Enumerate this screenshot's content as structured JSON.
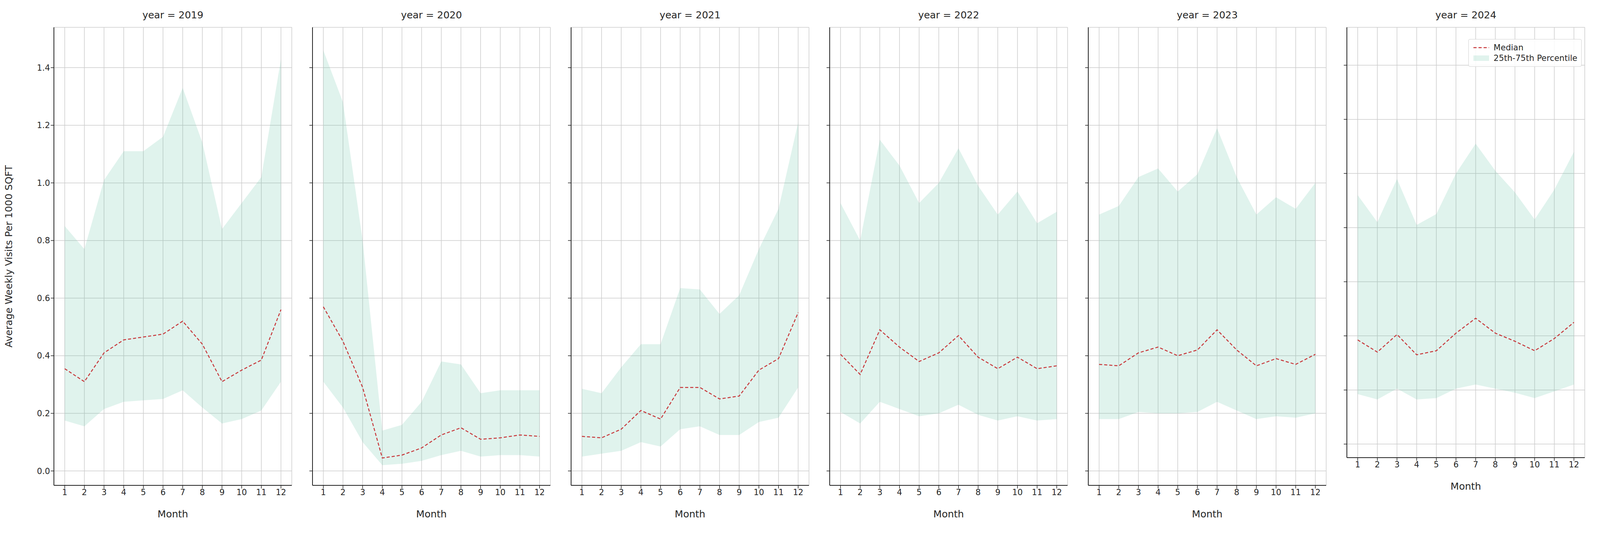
{
  "chart_data": [
    {
      "type": "line",
      "title": "year = 2019",
      "x_label": "Month",
      "y_label": "Average Weekly Visits Per 1000 SQFT",
      "x": [
        1,
        2,
        3,
        4,
        5,
        6,
        7,
        8,
        9,
        10,
        11,
        12
      ],
      "xlim": [
        0.45,
        12.55
      ],
      "xticks": [
        1,
        2,
        3,
        4,
        5,
        6,
        7,
        8,
        9,
        10,
        11,
        12
      ],
      "ylim": [
        -0.05,
        1.54
      ],
      "yticks": [
        {
          "value": 0,
          "label": "0.0"
        },
        0.2,
        0.4,
        0.6,
        0.8,
        {
          "value": 1,
          "label": "1.0"
        },
        1.2,
        1.4
      ],
      "grid": true,
      "series": [
        {
          "name": "Median",
          "type": "line",
          "line_style": "dashed",
          "color": "#c8383b",
          "values": [
            0.355,
            0.31,
            0.41,
            0.455,
            0.465,
            0.475,
            0.52,
            0.44,
            0.31,
            0.35,
            0.385,
            0.56
          ]
        },
        {
          "name": "25th-75th Percentile",
          "type": "area",
          "color": "#66c2a5",
          "values": [
            [
              0.175,
              0.85
            ],
            [
              0.155,
              0.77
            ],
            [
              0.215,
              1.01
            ],
            [
              0.24,
              1.11
            ],
            [
              0.245,
              1.11
            ],
            [
              0.25,
              1.16
            ],
            [
              0.28,
              1.33
            ],
            [
              0.22,
              1.14
            ],
            [
              0.165,
              0.84
            ],
            [
              0.18,
              0.93
            ],
            [
              0.21,
              1.02
            ],
            [
              0.31,
              1.43
            ]
          ]
        }
      ]
    },
    {
      "type": "line",
      "title": "year = 2020",
      "x_label": "Month",
      "x": [
        1,
        2,
        3,
        4,
        5,
        6,
        7,
        8,
        9,
        10,
        11,
        12
      ],
      "xlim": [
        0.45,
        12.55
      ],
      "xticks": [
        1,
        2,
        3,
        4,
        5,
        6,
        7,
        8,
        9,
        10,
        11,
        12
      ],
      "ylim": [
        -0.05,
        1.54
      ],
      "yticks": [
        {
          "value": 0,
          "label": "0.0"
        },
        0.2,
        0.4,
        0.6,
        0.8,
        {
          "value": 1,
          "label": "1.0"
        },
        1.2,
        1.4
      ],
      "grid": true,
      "tick_labels": "x",
      "series": [
        {
          "name": "Median",
          "type": "line",
          "line_style": "dashed",
          "color": "#c8383b",
          "values": [
            0.57,
            0.45,
            0.29,
            0.045,
            0.055,
            0.08,
            0.125,
            0.15,
            0.11,
            0.115,
            0.125,
            0.12
          ]
        },
        {
          "name": "25th-75th Percentile",
          "type": "area",
          "color": "#66c2a5",
          "values": [
            [
              0.31,
              1.46
            ],
            [
              0.22,
              1.28
            ],
            [
              0.1,
              0.8
            ],
            [
              0.02,
              0.14
            ],
            [
              0.025,
              0.16
            ],
            [
              0.035,
              0.24
            ],
            [
              0.055,
              0.38
            ],
            [
              0.07,
              0.37
            ],
            [
              0.05,
              0.27
            ],
            [
              0.055,
              0.28
            ],
            [
              0.055,
              0.28
            ],
            [
              0.05,
              0.28
            ]
          ]
        }
      ]
    },
    {
      "type": "line",
      "title": "year = 2021",
      "x_label": "Month",
      "x": [
        1,
        2,
        3,
        4,
        5,
        6,
        7,
        8,
        9,
        10,
        11,
        12
      ],
      "xlim": [
        0.45,
        12.55
      ],
      "xticks": [
        1,
        2,
        3,
        4,
        5,
        6,
        7,
        8,
        9,
        10,
        11,
        12
      ],
      "ylim": [
        -0.05,
        1.54
      ],
      "yticks": [
        {
          "value": 0,
          "label": "0.0"
        },
        0.2,
        0.4,
        0.6,
        0.8,
        {
          "value": 1,
          "label": "1.0"
        },
        1.2,
        1.4
      ],
      "grid": true,
      "tick_labels": "x",
      "series": [
        {
          "name": "Median",
          "type": "line",
          "line_style": "dashed",
          "color": "#c8383b",
          "values": [
            0.12,
            0.115,
            0.145,
            0.21,
            0.18,
            0.29,
            0.29,
            0.25,
            0.26,
            0.35,
            0.39,
            0.55
          ]
        },
        {
          "name": "25th-75th Percentile",
          "type": "area",
          "color": "#66c2a5",
          "values": [
            [
              0.05,
              0.285
            ],
            [
              0.06,
              0.27
            ],
            [
              0.07,
              0.36
            ],
            [
              0.1,
              0.44
            ],
            [
              0.085,
              0.44
            ],
            [
              0.145,
              0.635
            ],
            [
              0.155,
              0.63
            ],
            [
              0.125,
              0.545
            ],
            [
              0.125,
              0.61
            ],
            [
              0.17,
              0.77
            ],
            [
              0.185,
              0.91
            ],
            [
              0.29,
              1.21
            ]
          ]
        }
      ]
    },
    {
      "type": "line",
      "title": "year = 2022",
      "x_label": "Month",
      "x": [
        1,
        2,
        3,
        4,
        5,
        6,
        7,
        8,
        9,
        10,
        11,
        12
      ],
      "xlim": [
        0.45,
        12.55
      ],
      "xticks": [
        1,
        2,
        3,
        4,
        5,
        6,
        7,
        8,
        9,
        10,
        11,
        12
      ],
      "ylim": [
        -0.05,
        1.54
      ],
      "yticks": [
        {
          "value": 0,
          "label": "0.0"
        },
        0.2,
        0.4,
        0.6,
        0.8,
        {
          "value": 1,
          "label": "1.0"
        },
        1.2,
        1.4
      ],
      "grid": true,
      "tick_labels": "x",
      "series": [
        {
          "name": "Median",
          "type": "line",
          "line_style": "dashed",
          "color": "#c8383b",
          "values": [
            0.405,
            0.335,
            0.49,
            0.43,
            0.38,
            0.41,
            0.47,
            0.395,
            0.355,
            0.395,
            0.355,
            0.365
          ]
        },
        {
          "name": "25th-75th Percentile",
          "type": "area",
          "color": "#66c2a5",
          "values": [
            [
              0.205,
              0.93
            ],
            [
              0.165,
              0.8
            ],
            [
              0.24,
              1.15
            ],
            [
              0.215,
              1.06
            ],
            [
              0.19,
              0.93
            ],
            [
              0.2,
              1.0
            ],
            [
              0.23,
              1.12
            ],
            [
              0.195,
              0.99
            ],
            [
              0.175,
              0.89
            ],
            [
              0.19,
              0.97
            ],
            [
              0.175,
              0.86
            ],
            [
              0.18,
              0.9
            ]
          ]
        }
      ]
    },
    {
      "type": "line",
      "title": "year = 2023",
      "x_label": "Month",
      "x": [
        1,
        2,
        3,
        4,
        5,
        6,
        7,
        8,
        9,
        10,
        11,
        12
      ],
      "xlim": [
        0.45,
        12.55
      ],
      "xticks": [
        1,
        2,
        3,
        4,
        5,
        6,
        7,
        8,
        9,
        10,
        11,
        12
      ],
      "ylim": [
        -0.05,
        1.54
      ],
      "yticks": [
        {
          "value": 0,
          "label": "0.0"
        },
        0.2,
        0.4,
        0.6,
        0.8,
        {
          "value": 1,
          "label": "1.0"
        },
        1.2,
        1.4
      ],
      "grid": true,
      "tick_labels": "x",
      "series": [
        {
          "name": "Median",
          "type": "line",
          "line_style": "dashed",
          "color": "#c8383b",
          "values": [
            0.37,
            0.365,
            0.41,
            0.43,
            0.4,
            0.42,
            0.49,
            0.42,
            0.365,
            0.39,
            0.37,
            0.405
          ]
        },
        {
          "name": "25th-75th Percentile",
          "type": "area",
          "color": "#66c2a5",
          "values": [
            [
              0.18,
              0.89
            ],
            [
              0.18,
              0.92
            ],
            [
              0.205,
              1.02
            ],
            [
              0.2,
              1.05
            ],
            [
              0.2,
              0.97
            ],
            [
              0.205,
              1.03
            ],
            [
              0.24,
              1.19
            ],
            [
              0.21,
              1.02
            ],
            [
              0.18,
              0.89
            ],
            [
              0.19,
              0.95
            ],
            [
              0.185,
              0.91
            ],
            [
              0.2,
              1.0
            ]
          ]
        }
      ]
    },
    {
      "type": "line",
      "title": "year = 2024",
      "x_label": "Month",
      "x": [
        1,
        2,
        3,
        4,
        5,
        6,
        7,
        8,
        9,
        10,
        11,
        12
      ],
      "xlim": [
        0.45,
        12.55
      ],
      "xticks": [
        1,
        2,
        3,
        4,
        5,
        6,
        7,
        8,
        9,
        10,
        11,
        12
      ],
      "ylim": [
        -0.05,
        1.54
      ],
      "yticks": [
        {
          "value": 0,
          "label": "0.0"
        },
        0.2,
        0.4,
        0.6,
        0.8,
        {
          "value": 1,
          "label": "1.0"
        },
        1.2,
        1.4
      ],
      "grid": true,
      "tick_labels": "x",
      "legend": "upper right",
      "series": [
        {
          "name": "Median",
          "type": "line",
          "line_style": "dashed",
          "color": "#c8383b",
          "values": [
            0.385,
            0.34,
            0.405,
            0.33,
            0.345,
            0.41,
            0.465,
            0.41,
            0.38,
            0.345,
            0.39,
            0.45
          ]
        },
        {
          "name": "25th-75th Percentile",
          "type": "area",
          "color": "#66c2a5",
          "values": [
            [
              0.185,
              0.92
            ],
            [
              0.165,
              0.82
            ],
            [
              0.205,
              0.98
            ],
            [
              0.165,
              0.81
            ],
            [
              0.17,
              0.85
            ],
            [
              0.205,
              1.0
            ],
            [
              0.22,
              1.11
            ],
            [
              0.205,
              1.01
            ],
            [
              0.19,
              0.93
            ],
            [
              0.17,
              0.83
            ],
            [
              0.195,
              0.94
            ],
            [
              0.22,
              1.08
            ]
          ]
        }
      ]
    }
  ]
}
